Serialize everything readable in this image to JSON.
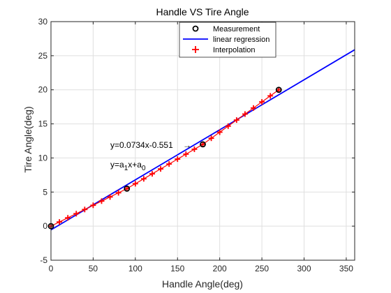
{
  "chart_data": {
    "type": "line",
    "title": "Handle VS Tire Angle",
    "xlabel": "Handle Angle(deg)",
    "ylabel": "Tire Angle(deg)",
    "xlim": [
      0,
      360
    ],
    "ylim": [
      -5,
      30
    ],
    "xticks": [
      0,
      50,
      100,
      150,
      200,
      250,
      300,
      350
    ],
    "yticks": [
      -5,
      0,
      5,
      10,
      15,
      20,
      25,
      30
    ],
    "grid": true,
    "legend_position": "top-center",
    "series": [
      {
        "name": "Measurement",
        "kind": "scatter",
        "marker": "circle",
        "color": "#000000",
        "x": [
          0,
          90,
          180,
          270
        ],
        "y": [
          0,
          5.5,
          12,
          20
        ]
      },
      {
        "name": "linear regression",
        "kind": "line",
        "color": "#0000ff",
        "slope": 0.0734,
        "intercept": -0.551,
        "x": [
          0,
          360
        ],
        "y": [
          -0.551,
          25.873
        ]
      },
      {
        "name": "Interpolation",
        "kind": "scatter",
        "marker": "plus",
        "color": "#ff0000",
        "x": [
          0,
          10,
          20,
          30,
          40,
          50,
          60,
          70,
          80,
          90,
          100,
          110,
          120,
          130,
          140,
          150,
          160,
          170,
          180,
          190,
          200,
          210,
          220,
          230,
          240,
          250,
          260,
          270
        ],
        "y": [
          0,
          0.61,
          1.22,
          1.83,
          2.44,
          3.06,
          3.67,
          4.28,
          4.89,
          5.5,
          6.22,
          6.94,
          7.67,
          8.39,
          9.11,
          9.83,
          10.56,
          11.28,
          12.0,
          12.89,
          13.78,
          14.67,
          15.56,
          16.44,
          17.33,
          18.22,
          19.11,
          20.0
        ]
      }
    ],
    "annotations": {
      "equation_text": "y=0.0734x-0.551",
      "arrow_glyph": "→",
      "model_y": "y=a",
      "model_sub1": "1",
      "model_mid": "x+a",
      "model_sub0": "0"
    }
  }
}
